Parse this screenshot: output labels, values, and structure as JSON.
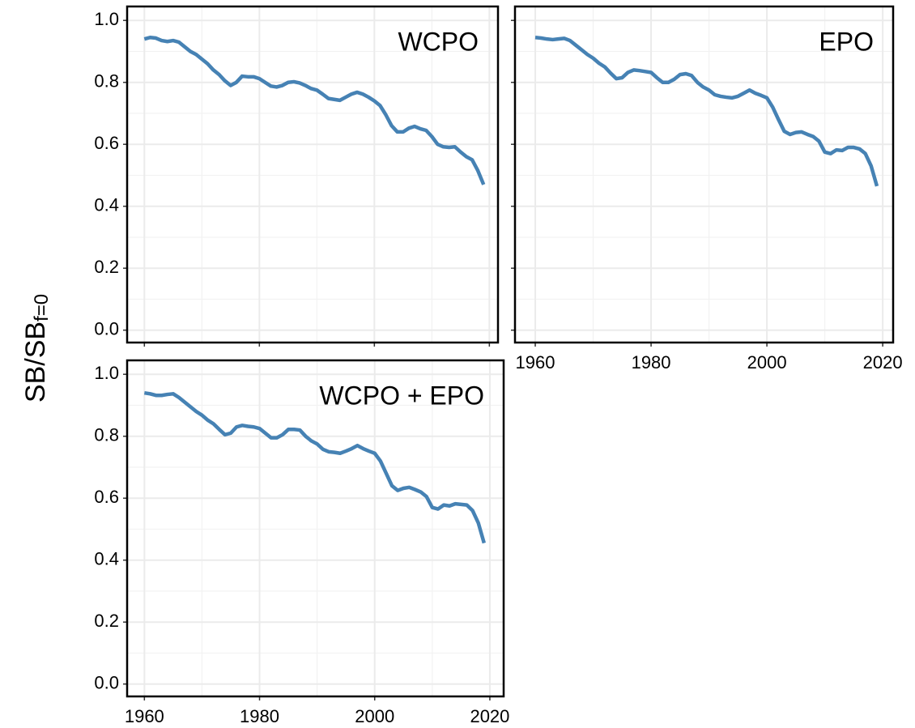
{
  "y_label": "SB/SB",
  "y_label_subscript": "f=0",
  "chart_data": [
    {
      "type": "line",
      "title": "WCPO",
      "color": "#4682b4",
      "grid": true,
      "minor_grid": true,
      "show_xticklabels": false,
      "show_yticklabels": true,
      "xlim": [
        1957,
        2021.5
      ],
      "ylim": [
        -0.04,
        1.045
      ],
      "xticks": [
        1960,
        1980,
        2000,
        2020
      ],
      "yticks": [
        {
          "value": 0,
          "label": "0.0"
        },
        0.2,
        0.4,
        0.6,
        0.8,
        {
          "value": 1,
          "label": "1.0"
        }
      ],
      "x": [
        1960,
        1961,
        1962,
        1963,
        1964,
        1965,
        1966,
        1967,
        1968,
        1969,
        1970,
        1971,
        1972,
        1973,
        1974,
        1975,
        1976,
        1977,
        1978,
        1979,
        1980,
        1981,
        1982,
        1983,
        1984,
        1985,
        1986,
        1987,
        1988,
        1989,
        1990,
        1991,
        1992,
        1993,
        1994,
        1995,
        1996,
        1997,
        1998,
        1999,
        2000,
        2001,
        2002,
        2003,
        2004,
        2005,
        2006,
        2007,
        2008,
        2009,
        2010,
        2011,
        2012,
        2013,
        2014,
        2015,
        2016,
        2017,
        2018,
        2019
      ],
      "values": [
        0.94,
        0.945,
        0.943,
        0.935,
        0.932,
        0.935,
        0.93,
        0.915,
        0.9,
        0.89,
        0.875,
        0.86,
        0.84,
        0.825,
        0.805,
        0.79,
        0.8,
        0.82,
        0.818,
        0.818,
        0.812,
        0.8,
        0.788,
        0.785,
        0.79,
        0.8,
        0.802,
        0.798,
        0.79,
        0.78,
        0.775,
        0.762,
        0.748,
        0.745,
        0.742,
        0.752,
        0.762,
        0.768,
        0.762,
        0.752,
        0.74,
        0.725,
        0.695,
        0.66,
        0.64,
        0.64,
        0.652,
        0.658,
        0.65,
        0.645,
        0.625,
        0.6,
        0.592,
        0.59,
        0.592,
        0.575,
        0.56,
        0.55,
        0.515,
        0.47
      ]
    },
    {
      "type": "line",
      "title": "EPO",
      "color": "#4682b4",
      "grid": true,
      "minor_grid": true,
      "show_xticklabels": true,
      "show_yticklabels": false,
      "xlim": [
        1956.5,
        2021.8
      ],
      "ylim": [
        -0.04,
        1.045
      ],
      "xticks": [
        1960,
        1980,
        2000,
        2020
      ],
      "yticks": [
        {
          "value": 0,
          "label": "0.0"
        },
        0.2,
        0.4,
        0.6,
        0.8,
        {
          "value": 1,
          "label": "1.0"
        }
      ],
      "x": [
        1960,
        1961,
        1962,
        1963,
        1964,
        1965,
        1966,
        1967,
        1968,
        1969,
        1970,
        1971,
        1972,
        1973,
        1974,
        1975,
        1976,
        1977,
        1978,
        1979,
        1980,
        1981,
        1982,
        1983,
        1984,
        1985,
        1986,
        1987,
        1988,
        1989,
        1990,
        1991,
        1992,
        1993,
        1994,
        1995,
        1996,
        1997,
        1998,
        1999,
        2000,
        2001,
        2002,
        2003,
        2004,
        2005,
        2006,
        2007,
        2008,
        2009,
        2010,
        2011,
        2012,
        2013,
        2014,
        2015,
        2016,
        2017,
        2018,
        2019
      ],
      "values": [
        0.945,
        0.943,
        0.94,
        0.938,
        0.94,
        0.942,
        0.935,
        0.92,
        0.905,
        0.89,
        0.878,
        0.862,
        0.85,
        0.83,
        0.812,
        0.815,
        0.832,
        0.84,
        0.838,
        0.835,
        0.832,
        0.815,
        0.8,
        0.8,
        0.81,
        0.825,
        0.828,
        0.822,
        0.8,
        0.785,
        0.775,
        0.76,
        0.755,
        0.752,
        0.75,
        0.755,
        0.765,
        0.775,
        0.765,
        0.758,
        0.75,
        0.72,
        0.68,
        0.642,
        0.632,
        0.638,
        0.64,
        0.632,
        0.625,
        0.61,
        0.575,
        0.57,
        0.582,
        0.58,
        0.59,
        0.59,
        0.585,
        0.57,
        0.53,
        0.465
      ]
    },
    {
      "type": "line",
      "title": "WCPO + EPO",
      "color": "#4682b4",
      "grid": true,
      "minor_grid": true,
      "show_xticklabels": true,
      "show_yticklabels": true,
      "xlim": [
        1957,
        2022.4
      ],
      "ylim": [
        -0.04,
        1.045
      ],
      "xticks": [
        1960,
        1980,
        2000,
        2020
      ],
      "yticks": [
        {
          "value": 0,
          "label": "0.0"
        },
        0.2,
        0.4,
        0.6,
        0.8,
        {
          "value": 1,
          "label": "1.0"
        }
      ],
      "x": [
        1960,
        1961,
        1962,
        1963,
        1964,
        1965,
        1966,
        1967,
        1968,
        1969,
        1970,
        1971,
        1972,
        1973,
        1974,
        1975,
        1976,
        1977,
        1978,
        1979,
        1980,
        1981,
        1982,
        1983,
        1984,
        1985,
        1986,
        1987,
        1988,
        1989,
        1990,
        1991,
        1992,
        1993,
        1994,
        1995,
        1996,
        1997,
        1998,
        1999,
        2000,
        2001,
        2002,
        2003,
        2004,
        2005,
        2006,
        2007,
        2008,
        2009,
        2010,
        2011,
        2012,
        2013,
        2014,
        2015,
        2016,
        2017,
        2018,
        2019
      ],
      "values": [
        0.94,
        0.937,
        0.932,
        0.932,
        0.935,
        0.937,
        0.925,
        0.91,
        0.895,
        0.88,
        0.868,
        0.852,
        0.84,
        0.822,
        0.805,
        0.81,
        0.83,
        0.835,
        0.832,
        0.83,
        0.825,
        0.81,
        0.795,
        0.795,
        0.805,
        0.822,
        0.822,
        0.82,
        0.8,
        0.785,
        0.775,
        0.758,
        0.75,
        0.748,
        0.745,
        0.752,
        0.76,
        0.77,
        0.76,
        0.752,
        0.745,
        0.72,
        0.68,
        0.64,
        0.625,
        0.632,
        0.635,
        0.628,
        0.62,
        0.605,
        0.57,
        0.565,
        0.578,
        0.575,
        0.582,
        0.58,
        0.578,
        0.56,
        0.52,
        0.455
      ]
    }
  ]
}
